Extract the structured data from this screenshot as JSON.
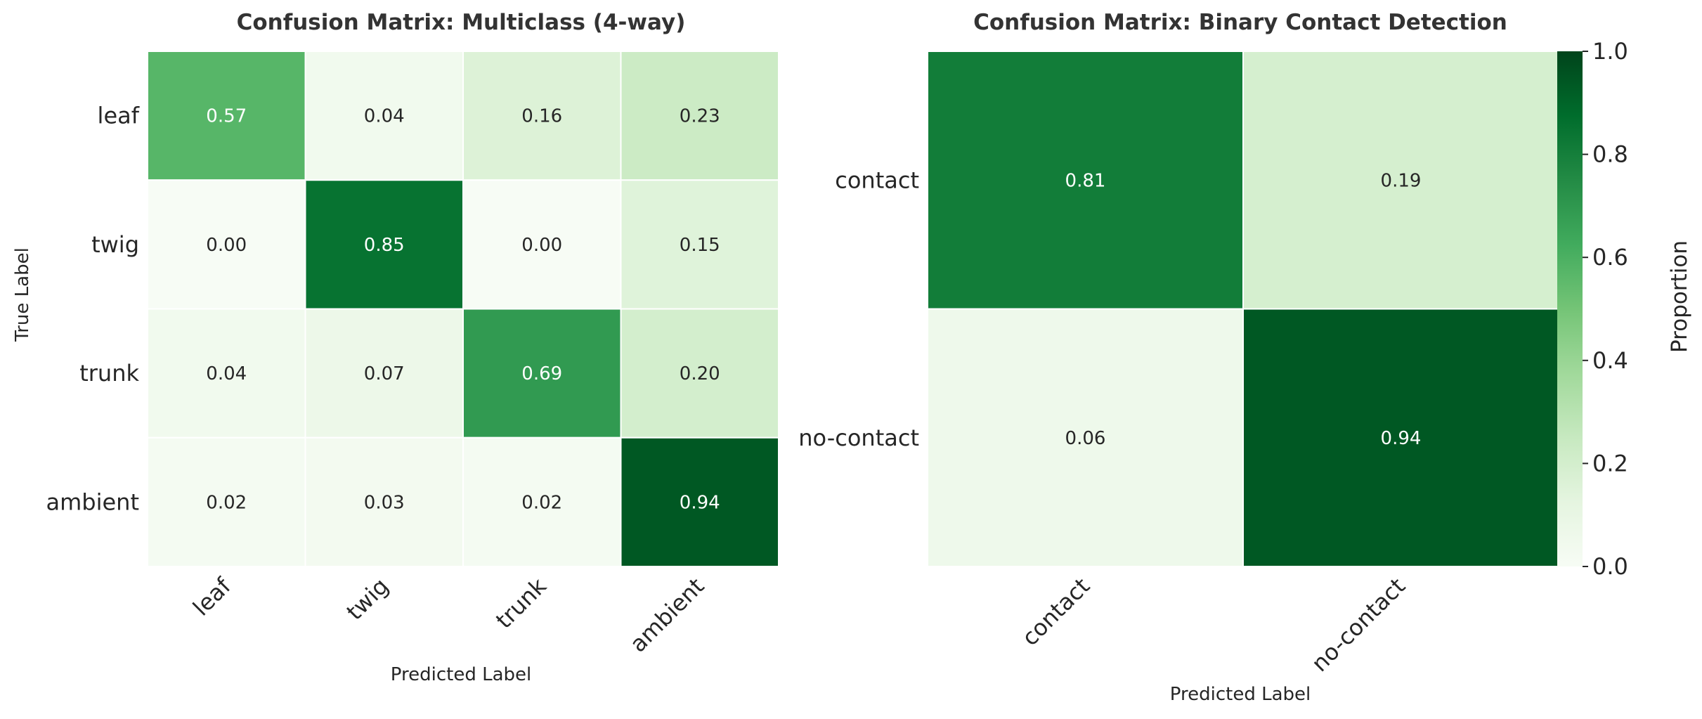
{
  "chart_data": [
    {
      "type": "heatmap",
      "title": "Confusion Matrix: Multiclass (4-way)",
      "xlabel": "Predicted Label",
      "ylabel": "True Label",
      "x_categories": [
        "leaf",
        "twig",
        "trunk",
        "ambient"
      ],
      "y_categories": [
        "leaf",
        "twig",
        "trunk",
        "ambient"
      ],
      "values": [
        [
          0.57,
          0.04,
          0.16,
          0.23
        ],
        [
          0.0,
          0.85,
          0.0,
          0.15
        ],
        [
          0.04,
          0.07,
          0.69,
          0.2
        ],
        [
          0.02,
          0.03,
          0.02,
          0.94
        ]
      ],
      "value_range": [
        0,
        1
      ],
      "colormap": "Greens"
    },
    {
      "type": "heatmap",
      "title": "Confusion Matrix: Binary Contact Detection",
      "xlabel": "Predicted Label",
      "ylabel": "",
      "x_categories": [
        "contact",
        "no-contact"
      ],
      "y_categories": [
        "contact",
        "no-contact"
      ],
      "values": [
        [
          0.81,
          0.19
        ],
        [
          0.06,
          0.94
        ]
      ],
      "value_range": [
        0,
        1
      ],
      "colormap": "Greens",
      "colorbar": {
        "label": "Proportion",
        "ticks": [
          "0.0",
          "0.2",
          "0.4",
          "0.6",
          "0.8",
          "1.0"
        ],
        "range": [
          0,
          1
        ]
      }
    }
  ],
  "colors": {
    "background": "#ffffff",
    "cell_border": "#ffffff",
    "title": "#333333",
    "text_dark": "#262626",
    "cell_text_on_light": "#262626",
    "cell_text_on_dark": "#ffffff",
    "greens_stops": [
      "#f7fcf5",
      "#e5f5e0",
      "#c7e9c0",
      "#a1d99b",
      "#74c476",
      "#41ab5d",
      "#238b45",
      "#006d2c",
      "#00441b"
    ]
  }
}
